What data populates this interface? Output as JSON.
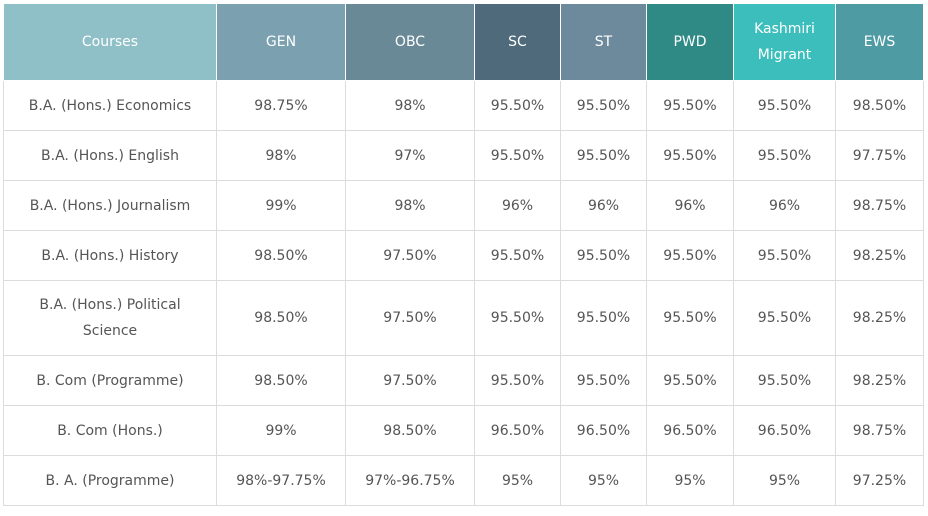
{
  "table": {
    "header": [
      "Courses",
      "GEN",
      "OBC",
      "SC",
      "ST",
      "PWD",
      "Kashmiri Migrant",
      "EWS"
    ],
    "rows": [
      [
        "B.A. (Hons.) Economics",
        "98.75%",
        "98%",
        "95.50%",
        "95.50%",
        "95.50%",
        "95.50%",
        "98.50%"
      ],
      [
        "B.A. (Hons.) English",
        "98%",
        "97%",
        "95.50%",
        "95.50%",
        "95.50%",
        "95.50%",
        "97.75%"
      ],
      [
        "B.A. (Hons.) Journalism",
        "99%",
        "98%",
        "96%",
        "96%",
        "96%",
        "96%",
        "98.75%"
      ],
      [
        "B.A. (Hons.) History",
        "98.50%",
        "97.50%",
        "95.50%",
        "95.50%",
        "95.50%",
        "95.50%",
        "98.25%"
      ],
      [
        "B.A. (Hons.) Political Science",
        "98.50%",
        "97.50%",
        "95.50%",
        "95.50%",
        "95.50%",
        "95.50%",
        "98.25%"
      ],
      [
        "B. Com (Programme)",
        "98.50%",
        "97.50%",
        "95.50%",
        "95.50%",
        "95.50%",
        "95.50%",
        "98.25%"
      ],
      [
        "B. Com (Hons.)",
        "99%",
        "98.50%",
        "96.50%",
        "96.50%",
        "96.50%",
        "96.50%",
        "98.75%"
      ],
      [
        "B. A. (Programme)",
        "98%-97.75%",
        "97%-96.75%",
        "95%",
        "95%",
        "95%",
        "95%",
        "97.25%"
      ]
    ]
  }
}
